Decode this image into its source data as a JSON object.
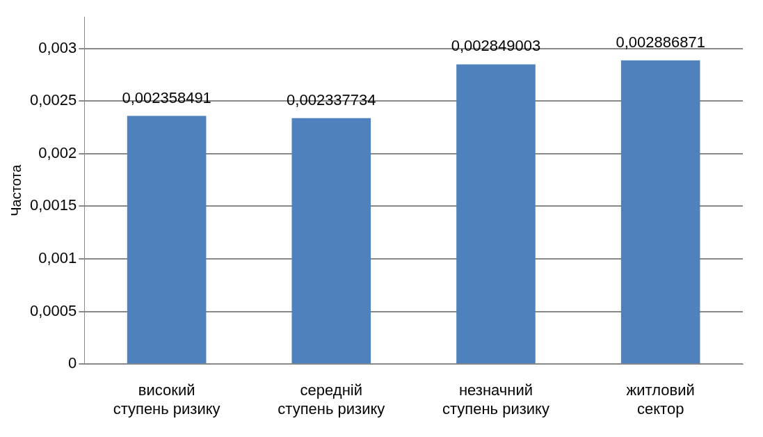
{
  "chart_data": {
    "type": "bar",
    "ylabel": "Частота",
    "categories": [
      "високий ступень ризику",
      "середній ступень ризику",
      "незначний ступень ризику",
      "житловий сектор"
    ],
    "values": [
      0.002358491,
      0.002337734,
      0.002849003,
      0.002886871
    ],
    "value_labels": [
      "0,002358491",
      "0,002337734",
      "0,002849003",
      "0,002886871"
    ],
    "color": "#4f81bd",
    "ylim": [
      0,
      0.0033
    ],
    "yticks": [
      0,
      {
        "value": 0.0005,
        "label": "0,0005"
      },
      {
        "value": 0.001,
        "label": "0,001"
      },
      {
        "value": 0.0015,
        "label": "0,0015"
      },
      {
        "value": 0.002,
        "label": "0,002"
      },
      {
        "value": 0.0025,
        "label": "0,0025"
      },
      {
        "value": 0.003,
        "label": "0,003"
      }
    ],
    "grid": "y",
    "legend": false
  }
}
